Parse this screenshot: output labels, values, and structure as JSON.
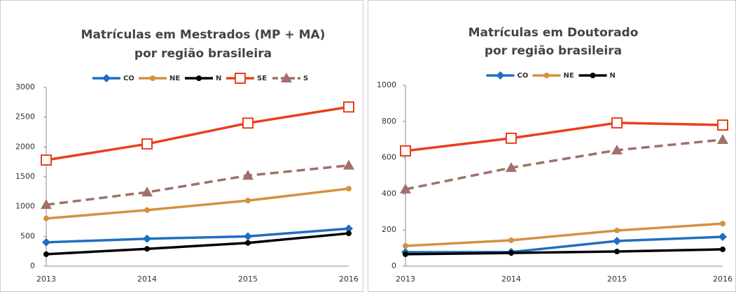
{
  "chart_data": [
    {
      "type": "line",
      "title": [
        "Matrículas em Mestrados (MP + MA)",
        "por região brasileira"
      ],
      "categories": [
        "2013",
        "2014",
        "2015",
        "2016"
      ],
      "ylim": [
        0,
        3000
      ],
      "yticks": [
        0,
        500,
        1000,
        1500,
        2000,
        2500,
        3000
      ],
      "series": [
        {
          "name": "CO",
          "color": "#1f6fc0",
          "marker": "diamond",
          "values": [
            400,
            460,
            500,
            630
          ]
        },
        {
          "name": "NE",
          "color": "#d4913f",
          "marker": "circle",
          "values": [
            800,
            940,
            1100,
            1300
          ]
        },
        {
          "name": "N",
          "color": "#000000",
          "marker": "circle",
          "values": [
            200,
            290,
            390,
            550
          ]
        },
        {
          "name": "SE",
          "color": "#e8401c",
          "marker": "square",
          "values": [
            1780,
            2050,
            2400,
            2670
          ]
        },
        {
          "name": "S",
          "color": "#a0706a",
          "marker": "triangle",
          "dashed": true,
          "values": [
            1030,
            1240,
            1520,
            1690
          ]
        }
      ]
    },
    {
      "type": "line",
      "title": [
        "Matrículas em Doutorado",
        "por região brasileira"
      ],
      "categories": [
        "2013",
        "2014",
        "2015",
        "2016"
      ],
      "ylim": [
        0,
        1000
      ],
      "yticks": [
        0,
        200,
        400,
        600,
        800,
        1000
      ],
      "series": [
        {
          "name": "CO",
          "color": "#1f6fc0",
          "marker": "diamond",
          "values": [
            77,
            78,
            139,
            162
          ]
        },
        {
          "name": "NE",
          "color": "#d4913f",
          "marker": "circle",
          "values": [
            112,
            143,
            197,
            235
          ]
        },
        {
          "name": "N",
          "color": "#000000",
          "marker": "circle",
          "values": [
            66,
            73,
            81,
            93
          ]
        },
        {
          "color": "#e8401c",
          "marker": "square",
          "values": [
            637,
            707,
            792,
            780
          ]
        },
        {
          "color": "#a0706a",
          "marker": "triangle",
          "dashed": true,
          "values": [
            425,
            544,
            641,
            699
          ]
        }
      ]
    }
  ]
}
